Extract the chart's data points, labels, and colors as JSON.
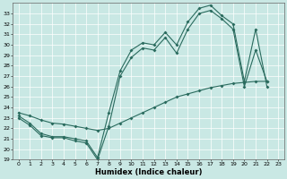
{
  "xlabel": "Humidex (Indice chaleur)",
  "xlim": [
    -0.5,
    23.5
  ],
  "ylim": [
    19,
    34
  ],
  "yticks": [
    19,
    20,
    21,
    22,
    23,
    24,
    25,
    26,
    27,
    28,
    29,
    30,
    31,
    32,
    33
  ],
  "xticks": [
    0,
    1,
    2,
    3,
    4,
    5,
    6,
    7,
    8,
    9,
    10,
    11,
    12,
    13,
    14,
    15,
    16,
    17,
    18,
    19,
    20,
    21,
    22,
    23
  ],
  "bg_color": "#c9e8e4",
  "line_color": "#2a6b5e",
  "line1_x": [
    0,
    1,
    2,
    3,
    4,
    5,
    6,
    7,
    8,
    9,
    10,
    11,
    12,
    13,
    14,
    15,
    16,
    17,
    18,
    19,
    20,
    21,
    22
  ],
  "line1_y": [
    23.2,
    22.5,
    21.5,
    21.2,
    21.2,
    21.0,
    20.8,
    19.2,
    23.5,
    27.5,
    29.5,
    30.2,
    30.0,
    31.2,
    30.0,
    32.2,
    33.5,
    33.8,
    32.8,
    32.0,
    26.5,
    31.5,
    26.0
  ],
  "line2_x": [
    0,
    1,
    2,
    3,
    4,
    5,
    6,
    7,
    8,
    9,
    10,
    11,
    12,
    13,
    14,
    15,
    16,
    17,
    18,
    19,
    20,
    21,
    22
  ],
  "line2_y": [
    23.0,
    22.3,
    21.3,
    21.1,
    21.1,
    20.8,
    20.6,
    19.0,
    22.2,
    27.0,
    28.8,
    29.7,
    29.5,
    30.7,
    29.2,
    31.5,
    33.0,
    33.3,
    32.5,
    31.5,
    26.0,
    29.5,
    26.5
  ],
  "line3_x": [
    0,
    1,
    2,
    3,
    4,
    5,
    6,
    7,
    8,
    9,
    10,
    11,
    12,
    13,
    14,
    15,
    16,
    17,
    18,
    19,
    20,
    21,
    22
  ],
  "line3_y": [
    23.5,
    23.2,
    22.8,
    22.5,
    22.4,
    22.2,
    22.0,
    21.8,
    22.0,
    22.5,
    23.0,
    23.5,
    24.0,
    24.5,
    25.0,
    25.3,
    25.6,
    25.9,
    26.1,
    26.3,
    26.4,
    26.5,
    26.5
  ]
}
